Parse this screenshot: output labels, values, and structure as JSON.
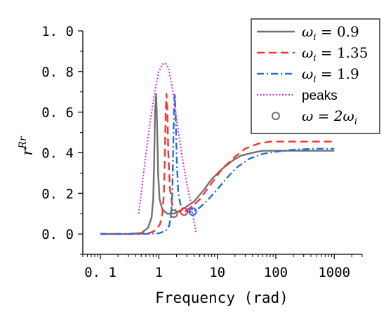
{
  "chart_data": {
    "type": "line",
    "xlabel": "Frequency (rad)",
    "ylabel": "r^Rr",
    "ylabel_base": "r",
    "ylabel_sup": "Rr",
    "xscale": "log",
    "xlim": [
      0.05,
      3000
    ],
    "ylim": [
      -0.1,
      1.0
    ],
    "xticks": [
      0.1,
      1,
      10,
      100,
      1000
    ],
    "xtick_labels": [
      "0. 1",
      "1",
      "10",
      "100",
      "1000"
    ],
    "yticks": [
      0.0,
      0.2,
      0.4,
      0.6,
      0.8,
      1.0
    ],
    "ytick_labels": [
      "0. 0",
      "0. 2",
      "0. 4",
      "0. 6",
      "0. 8",
      "1. 0"
    ],
    "grid": false,
    "legend_position": "top-right",
    "series": [
      {
        "name": "ω_i = 0.9",
        "legend_base": "ω",
        "legend_sub": "i",
        "legend_rest": " = 0.9",
        "color": "#707070",
        "style": "solid",
        "points": [
          [
            0.1,
            0.0
          ],
          [
            0.3,
            0.0
          ],
          [
            0.5,
            0.005
          ],
          [
            0.65,
            0.03
          ],
          [
            0.75,
            0.08
          ],
          [
            0.8,
            0.17
          ],
          [
            0.83,
            0.35
          ],
          [
            0.86,
            0.6
          ],
          [
            0.9,
            0.69
          ],
          [
            0.93,
            0.55
          ],
          [
            0.97,
            0.3
          ],
          [
            1.03,
            0.17
          ],
          [
            1.15,
            0.12
          ],
          [
            1.4,
            0.1
          ],
          [
            1.8,
            0.1
          ],
          [
            2.5,
            0.12
          ],
          [
            4,
            0.16
          ],
          [
            6,
            0.22
          ],
          [
            8,
            0.27
          ],
          [
            12,
            0.32
          ],
          [
            18,
            0.36
          ],
          [
            25,
            0.385
          ],
          [
            40,
            0.4
          ],
          [
            60,
            0.41
          ],
          [
            100,
            0.41
          ],
          [
            300,
            0.41
          ],
          [
            1000,
            0.41
          ]
        ]
      },
      {
        "name": "ω_i = 1.35",
        "legend_base": "ω",
        "legend_sub": "i",
        "legend_rest": " = 1.35",
        "color": "#ff3030",
        "style": "dashed",
        "points": [
          [
            0.1,
            0.0
          ],
          [
            0.4,
            0.0
          ],
          [
            0.7,
            0.005
          ],
          [
            0.9,
            0.02
          ],
          [
            1.05,
            0.05
          ],
          [
            1.15,
            0.1
          ],
          [
            1.22,
            0.2
          ],
          [
            1.27,
            0.4
          ],
          [
            1.31,
            0.6
          ],
          [
            1.35,
            0.69
          ],
          [
            1.4,
            0.6
          ],
          [
            1.45,
            0.4
          ],
          [
            1.55,
            0.22
          ],
          [
            1.7,
            0.14
          ],
          [
            2,
            0.11
          ],
          [
            2.7,
            0.11
          ],
          [
            3.5,
            0.13
          ],
          [
            5,
            0.17
          ],
          [
            8,
            0.25
          ],
          [
            12,
            0.32
          ],
          [
            20,
            0.38
          ],
          [
            30,
            0.42
          ],
          [
            50,
            0.445
          ],
          [
            80,
            0.455
          ],
          [
            150,
            0.455
          ],
          [
            400,
            0.455
          ],
          [
            1000,
            0.455
          ]
        ]
      },
      {
        "name": "ω_i = 1.9",
        "legend_base": "ω",
        "legend_sub": "i",
        "legend_rest": " = 1.9",
        "color": "#1f6fe0",
        "style": "dashdot",
        "points": [
          [
            0.1,
            0.0
          ],
          [
            0.5,
            0.0
          ],
          [
            1.0,
            0.003
          ],
          [
            1.3,
            0.015
          ],
          [
            1.5,
            0.04
          ],
          [
            1.62,
            0.09
          ],
          [
            1.7,
            0.2
          ],
          [
            1.76,
            0.42
          ],
          [
            1.82,
            0.63
          ],
          [
            1.88,
            0.69
          ],
          [
            1.95,
            0.55
          ],
          [
            2.03,
            0.35
          ],
          [
            2.15,
            0.2
          ],
          [
            2.4,
            0.13
          ],
          [
            3,
            0.11
          ],
          [
            3.8,
            0.11
          ],
          [
            5,
            0.13
          ],
          [
            7,
            0.17
          ],
          [
            10,
            0.22
          ],
          [
            15,
            0.28
          ],
          [
            22,
            0.33
          ],
          [
            35,
            0.37
          ],
          [
            60,
            0.395
          ],
          [
            100,
            0.405
          ],
          [
            200,
            0.415
          ],
          [
            500,
            0.42
          ],
          [
            1000,
            0.42
          ]
        ]
      },
      {
        "name": "peaks",
        "legend_rest": "peaks",
        "color": "#e020e0",
        "style": "dotted",
        "points": [
          [
            0.45,
            0.1
          ],
          [
            0.5,
            0.2
          ],
          [
            0.58,
            0.36
          ],
          [
            0.7,
            0.54
          ],
          [
            0.85,
            0.7
          ],
          [
            1.0,
            0.8
          ],
          [
            1.15,
            0.836
          ],
          [
            1.3,
            0.84
          ],
          [
            1.45,
            0.82
          ],
          [
            1.7,
            0.72
          ],
          [
            2.0,
            0.57
          ],
          [
            2.5,
            0.38
          ],
          [
            3.0,
            0.25
          ],
          [
            3.6,
            0.14
          ],
          [
            4.3,
            0.01
          ]
        ]
      }
    ],
    "markers": {
      "name": "ω = 2ω_i",
      "legend_pre": "ω = 2ω",
      "legend_sub": "i",
      "style": "open-circle",
      "points": [
        {
          "x": 1.8,
          "y": 0.1,
          "color": "#707070"
        },
        {
          "x": 2.7,
          "y": 0.11,
          "color": "#ff3030"
        },
        {
          "x": 3.8,
          "y": 0.11,
          "color": "#1f6fe0"
        }
      ]
    }
  }
}
